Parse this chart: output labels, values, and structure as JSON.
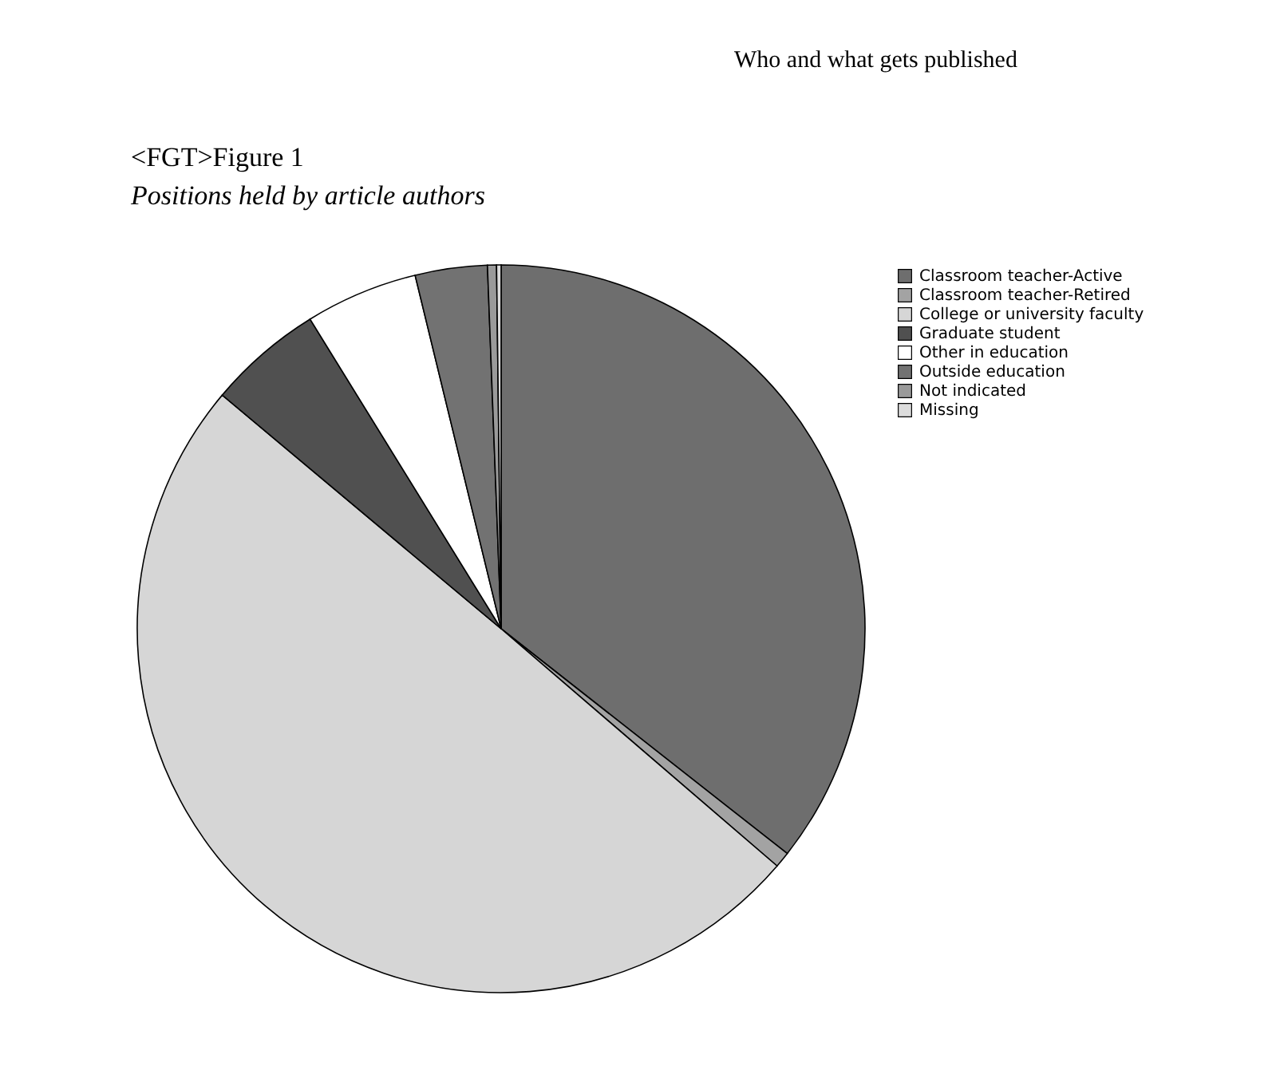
{
  "chart_data": {
    "type": "pie",
    "title": "<FGT>Figure 1",
    "subtitle": "Positions held by article authors",
    "annotations": [
      "Who and what gets published"
    ],
    "categories": [
      "Classroom teacher-Active",
      "Classroom teacher-Retired",
      "College or university faculty",
      "Graduate student",
      "Other in education",
      "Outside education",
      "Not indicated",
      "Missing"
    ],
    "values": [
      35.6,
      0.7,
      49.8,
      5.1,
      5.0,
      3.2,
      0.4,
      0.2
    ],
    "colors": [
      "#6e6e6e",
      "#a3a3a3",
      "#d6d6d6",
      "#505050",
      "#ffffff",
      "#727272",
      "#9a9a9a",
      "#dcdcdc"
    ],
    "legend": "top right"
  }
}
